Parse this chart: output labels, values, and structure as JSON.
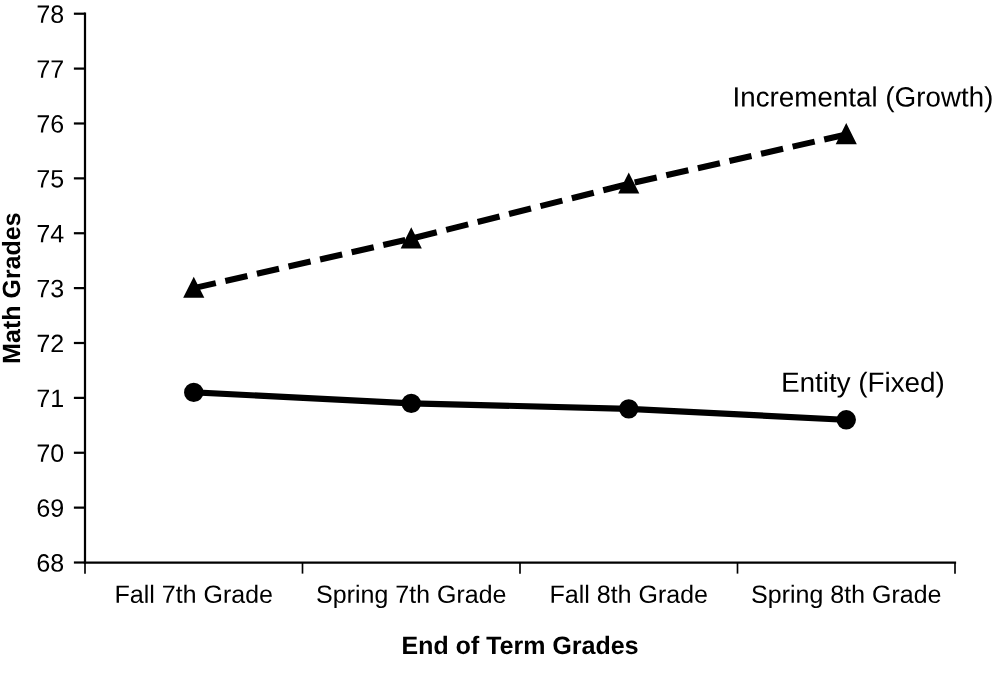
{
  "chart_data": {
    "type": "line",
    "xlabel": "End of Term Grades",
    "ylabel": "Math Grades",
    "categories": [
      "Fall 7th Grade",
      "Spring 7th Grade",
      "Fall 8th Grade",
      "Spring 8th Grade"
    ],
    "series": [
      {
        "name": "Incremental (Growth)",
        "color": "#000000",
        "values": [
          73.0,
          73.9,
          74.9,
          75.8
        ],
        "marker": "triangle",
        "line_style": "dashed"
      },
      {
        "name": "Entity (Fixed)",
        "color": "#000000",
        "values": [
          71.1,
          70.9,
          70.8,
          70.6
        ],
        "marker": "circle",
        "line_style": "solid"
      }
    ],
    "ylim": [
      68,
      78
    ],
    "yticks": [
      68,
      69,
      70,
      71,
      72,
      73,
      74,
      75,
      76,
      77,
      78
    ],
    "grid": false,
    "legend": false
  }
}
